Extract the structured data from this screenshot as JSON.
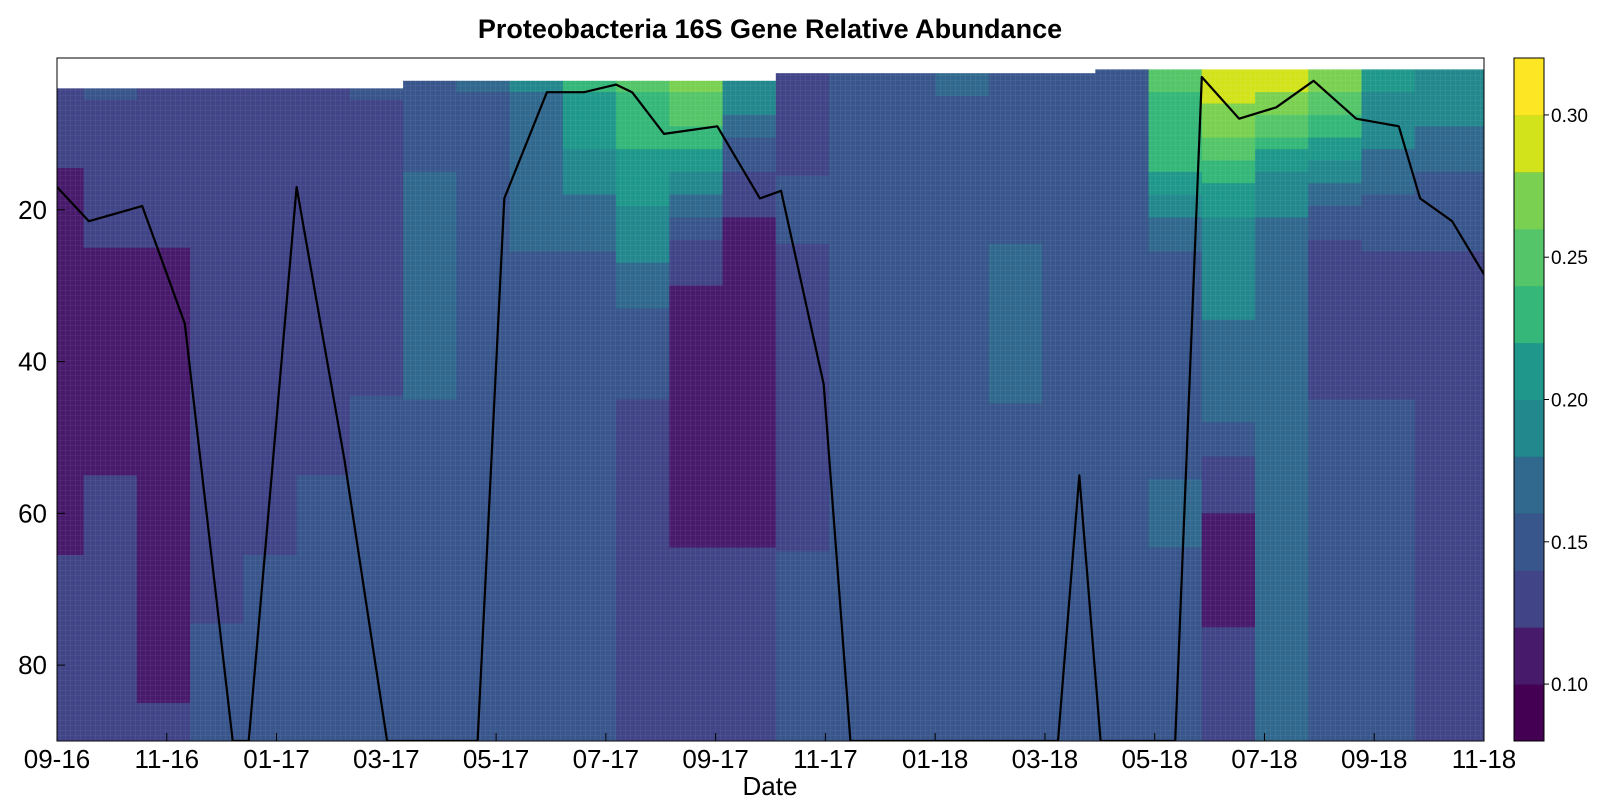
{
  "chart_data": {
    "type": "heatmap",
    "title": "Proteobacteria 16S Gene Relative Abundance",
    "xlabel": "Date",
    "ylabel": "",
    "x_ticks": [
      "09-16",
      "11-16",
      "01-17",
      "03-17",
      "05-17",
      "07-17",
      "09-17",
      "11-17",
      "01-18",
      "03-18",
      "05-18",
      "07-18",
      "09-18",
      "11-18"
    ],
    "y_ticks": [
      20,
      40,
      60,
      80
    ],
    "ylim": [
      0,
      90
    ],
    "y_inverted": true,
    "colorbar": {
      "ticks": [
        "0.10",
        "0.15",
        "0.20",
        "0.25",
        "0.30"
      ],
      "tick_values": [
        0.1,
        0.15,
        0.2,
        0.25,
        0.3
      ],
      "range": [
        0.08,
        0.32
      ],
      "levels": [
        0.08,
        0.1,
        0.12,
        0.14,
        0.16,
        0.18,
        0.2,
        0.22,
        0.24,
        0.26,
        0.28,
        0.3,
        0.32
      ],
      "colors": [
        "#440154",
        "#481a6c",
        "#472f7d",
        "#414487",
        "#39568c",
        "#31688e",
        "#2a788e",
        "#23888e",
        "#1f988b",
        "#22a884",
        "#35b779",
        "#54c568",
        "#7ad151",
        "#a5db36",
        "#d2e21b",
        "#fde725"
      ]
    },
    "columns": [
      {
        "t": 0.0,
        "surface": 4,
        "profile": [
          0.125,
          0.12,
          0.115,
          0.11,
          0.11,
          0.115,
          0.12,
          0.125,
          0.125,
          0.12
        ]
      },
      {
        "t": 0.5,
        "surface": 4,
        "profile": [
          0.14,
          0.13,
          0.12,
          0.115,
          0.115,
          0.12,
          0.125,
          0.13,
          0.13,
          0.13
        ]
      },
      {
        "t": 1.0,
        "surface": 4,
        "profile": [
          0.135,
          0.125,
          0.12,
          0.115,
          0.115,
          0.115,
          0.115,
          0.115,
          0.12,
          0.12
        ]
      },
      {
        "t": 1.5,
        "surface": 4,
        "profile": [
          0.13,
          0.13,
          0.13,
          0.13,
          0.13,
          0.135,
          0.135,
          0.14,
          0.14,
          0.14
        ]
      },
      {
        "t": 2.0,
        "surface": 4,
        "profile": [
          0.13,
          0.13,
          0.13,
          0.13,
          0.13,
          0.135,
          0.14,
          0.14,
          0.145,
          0.145
        ]
      },
      {
        "t": 2.5,
        "surface": 4,
        "profile": [
          0.13,
          0.13,
          0.13,
          0.13,
          0.135,
          0.14,
          0.145,
          0.15,
          0.15,
          0.15
        ]
      },
      {
        "t": 3.0,
        "surface": 4,
        "profile": [
          0.14,
          0.135,
          0.135,
          0.135,
          0.14,
          0.145,
          0.15,
          0.155,
          0.155,
          0.155
        ]
      },
      {
        "t": 3.5,
        "surface": 3,
        "profile": [
          0.15,
          0.16,
          0.165,
          0.165,
          0.16,
          0.155,
          0.15,
          0.15,
          0.15,
          0.15
        ]
      },
      {
        "t": 4.0,
        "surface": 3,
        "profile": [
          0.16,
          0.15,
          0.14,
          0.14,
          0.14,
          0.14,
          0.145,
          0.145,
          0.145,
          0.145
        ]
      },
      {
        "t": 4.5,
        "surface": 3,
        "profile": [
          0.18,
          0.17,
          0.16,
          0.15,
          0.145,
          0.145,
          0.15,
          0.15,
          0.15,
          0.15
        ]
      },
      {
        "t": 5.0,
        "surface": 3,
        "profile": [
          0.22,
          0.19,
          0.16,
          0.145,
          0.14,
          0.14,
          0.14,
          0.14,
          0.14,
          0.14
        ]
      },
      {
        "t": 5.5,
        "surface": 3,
        "profile": [
          0.24,
          0.21,
          0.19,
          0.15,
          0.14,
          0.135,
          0.135,
          0.135,
          0.135,
          0.135
        ]
      },
      {
        "t": 6.0,
        "surface": 3,
        "profile": [
          0.26,
          0.2,
          0.13,
          0.11,
          0.11,
          0.115,
          0.12,
          0.12,
          0.12,
          0.12
        ]
      },
      {
        "t": 6.5,
        "surface": 3,
        "profile": [
          0.19,
          0.14,
          0.11,
          0.1,
          0.105,
          0.115,
          0.12,
          0.12,
          0.12,
          0.12
        ]
      },
      {
        "t": 7.0,
        "surface": 2,
        "profile": [
          0.13,
          0.14,
          0.14,
          0.135,
          0.13,
          0.135,
          0.14,
          0.14,
          0.14,
          0.14
        ]
      },
      {
        "t": 7.5,
        "surface": 2,
        "profile": [
          0.14,
          0.14,
          0.145,
          0.145,
          0.145,
          0.145,
          0.145,
          0.145,
          0.145,
          0.145
        ]
      },
      {
        "t": 8.0,
        "surface": 2,
        "profile": [
          0.15,
          0.15,
          0.15,
          0.15,
          0.15,
          0.15,
          0.15,
          0.15,
          0.15,
          0.15
        ]
      },
      {
        "t": 8.5,
        "surface": 2,
        "profile": [
          0.16,
          0.155,
          0.15,
          0.15,
          0.15,
          0.15,
          0.15,
          0.15,
          0.15,
          0.15
        ]
      },
      {
        "t": 9.0,
        "surface": 2,
        "profile": [
          0.15,
          0.15,
          0.16,
          0.165,
          0.16,
          0.155,
          0.15,
          0.15,
          0.15,
          0.15
        ]
      },
      {
        "t": 9.5,
        "surface": 2,
        "profile": [
          0.15,
          0.15,
          0.15,
          0.15,
          0.15,
          0.15,
          0.15,
          0.145,
          0.145,
          0.145
        ]
      },
      {
        "t": 10.0,
        "surface": 1.5,
        "profile": [
          0.15,
          0.145,
          0.14,
          0.14,
          0.14,
          0.14,
          0.14,
          0.14,
          0.14,
          0.14
        ]
      },
      {
        "t": 10.5,
        "surface": 1.5,
        "profile": [
          0.24,
          0.22,
          0.16,
          0.15,
          0.155,
          0.16,
          0.16,
          0.15,
          0.14,
          0.14
        ]
      },
      {
        "t": 11.0,
        "surface": 1.5,
        "profile": [
          0.29,
          0.23,
          0.18,
          0.18,
          0.17,
          0.13,
          0.11,
          0.12,
          0.13,
          0.13
        ]
      },
      {
        "t": 11.5,
        "surface": 1.5,
        "profile": [
          0.28,
          0.2,
          0.17,
          0.17,
          0.17,
          0.17,
          0.165,
          0.16,
          0.16,
          0.16
        ]
      },
      {
        "t": 12.0,
        "surface": 1.5,
        "profile": [
          0.26,
          0.19,
          0.13,
          0.125,
          0.14,
          0.15,
          0.15,
          0.15,
          0.15,
          0.15
        ]
      },
      {
        "t": 12.5,
        "surface": 1.5,
        "profile": [
          0.2,
          0.17,
          0.14,
          0.135,
          0.14,
          0.14,
          0.14,
          0.14,
          0.14,
          0.14
        ]
      },
      {
        "t": 13.0,
        "surface": 1.5,
        "profile": [
          0.19,
          0.16,
          0.14,
          0.13,
          0.125,
          0.12,
          0.12,
          0.12,
          0.12,
          0.12
        ]
      }
    ],
    "profile_depths": [
      5,
      15,
      25,
      35,
      45,
      55,
      65,
      75,
      85,
      90
    ],
    "series": [
      {
        "x": [
          0.0,
          0.3,
          0.8,
          1.2,
          1.65,
          1.8,
          2.25,
          2.7,
          3.1,
          3.95,
          4.2,
          4.6,
          4.95,
          5.25,
          5.4,
          5.7,
          6.2,
          6.6,
          6.8,
          7.2,
          7.45,
          7.7,
          9.4,
          9.6,
          9.8,
          10.5,
          10.75,
          11.1,
          11.45,
          11.8,
          12.2,
          12.6,
          12.8,
          13.1,
          13.4
        ],
        "y": [
          17,
          21.5,
          19.5,
          35,
          90,
          90,
          17,
          53,
          90,
          90,
          18.5,
          4.5,
          4.5,
          3.5,
          4.5,
          10,
          9,
          18.5,
          17.5,
          43,
          90,
          90,
          90,
          55,
          90,
          90,
          2.5,
          8,
          6.5,
          3,
          8,
          9,
          18.5,
          21.5,
          28.5
        ]
      }
    ]
  }
}
